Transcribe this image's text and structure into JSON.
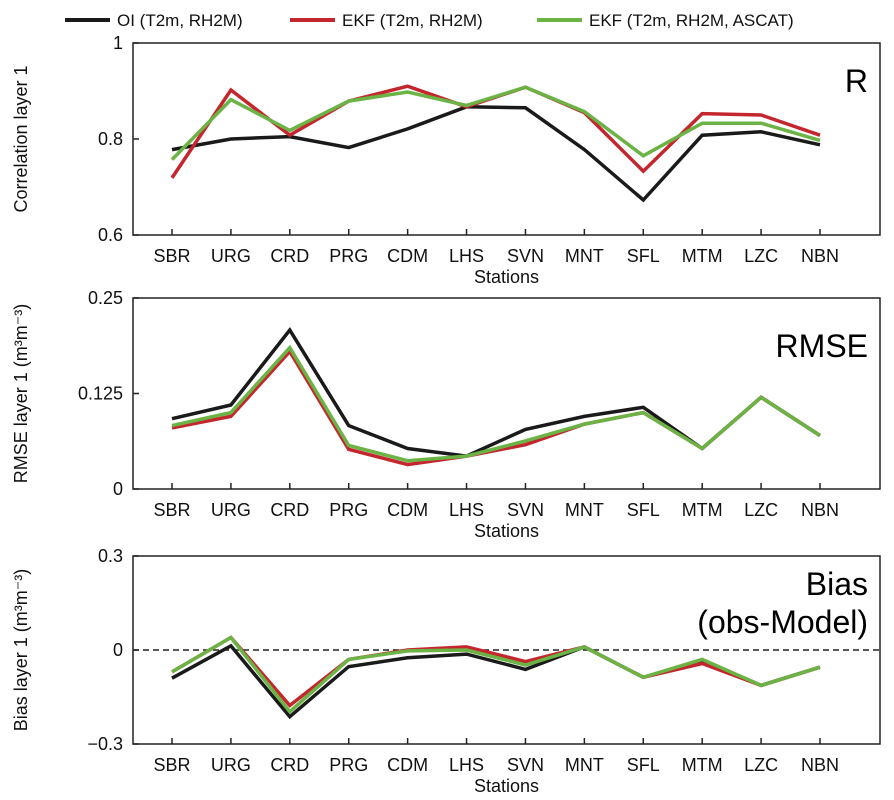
{
  "legend": [
    {
      "name": "OI (T2m, RH2M)",
      "color": "#1a1a1a"
    },
    {
      "name": "EKF (T2m, RH2M)",
      "color": "#c4262e"
    },
    {
      "name": "EKF (T2m, RH2M, ASCAT)",
      "color": "#6ab344"
    }
  ],
  "chart_data": [
    {
      "type": "line",
      "panel_label": "R",
      "xlabel": "Stations",
      "ylabel": "Correlation layer 1",
      "categories": [
        "SBR",
        "URG",
        "CRD",
        "PRG",
        "CDM",
        "LHS",
        "SVN",
        "MNT",
        "SFL",
        "MTM",
        "LZC",
        "NBN"
      ],
      "ylim": [
        0.6,
        1.0
      ],
      "yticks": [
        0.6,
        0.8,
        1.0
      ],
      "ytick_labels": [
        "0.6",
        "0.8",
        "1"
      ],
      "series": [
        {
          "name": "OI (T2m, RH2M)",
          "values": [
            0.778,
            0.8,
            0.805,
            0.782,
            0.821,
            0.867,
            0.865,
            0.778,
            0.673,
            0.808,
            0.815,
            0.788
          ]
        },
        {
          "name": "EKF (T2m, RH2M)",
          "values": [
            0.719,
            0.902,
            0.808,
            0.879,
            0.91,
            0.867,
            0.908,
            0.855,
            0.733,
            0.853,
            0.85,
            0.808
          ]
        },
        {
          "name": "EKF (T2m, RH2M, ASCAT)",
          "values": [
            0.757,
            0.882,
            0.818,
            0.879,
            0.898,
            0.87,
            0.908,
            0.857,
            0.765,
            0.833,
            0.833,
            0.797
          ]
        }
      ]
    },
    {
      "type": "line",
      "panel_label": "RMSE",
      "xlabel": "Stations",
      "ylabel": "RMSE layer 1 (m³m⁻³)",
      "categories": [
        "SBR",
        "URG",
        "CRD",
        "PRG",
        "CDM",
        "LHS",
        "SVN",
        "MNT",
        "SFL",
        "MTM",
        "LZC",
        "NBN"
      ],
      "ylim": [
        0,
        0.25
      ],
      "yticks": [
        0,
        0.125,
        0.25
      ],
      "ytick_labels": [
        "0",
        "0.125",
        "0.25"
      ],
      "series": [
        {
          "name": "OI (T2m, RH2M)",
          "values": [
            0.092,
            0.11,
            0.208,
            0.083,
            0.053,
            0.043,
            0.078,
            0.095,
            0.107,
            0.053,
            0.12,
            0.07
          ]
        },
        {
          "name": "EKF (T2m, RH2M)",
          "values": [
            0.08,
            0.095,
            0.18,
            0.052,
            0.032,
            0.043,
            0.058,
            0.085,
            0.1,
            0.053,
            0.12,
            0.07
          ]
        },
        {
          "name": "EKF (T2m, RH2M, ASCAT)",
          "values": [
            0.083,
            0.1,
            0.185,
            0.057,
            0.037,
            0.043,
            0.063,
            0.085,
            0.1,
            0.053,
            0.12,
            0.07
          ]
        }
      ]
    },
    {
      "type": "line",
      "panel_label": "Bias\n(obs-Model)",
      "panel_label_lines": [
        "Bias",
        "(obs-Model)"
      ],
      "xlabel": "Stations",
      "ylabel": "Bias layer 1 (m³m⁻³)",
      "categories": [
        "SBR",
        "URG",
        "CRD",
        "PRG",
        "CDM",
        "LHS",
        "SVN",
        "MNT",
        "SFL",
        "MTM",
        "LZC",
        "NBN"
      ],
      "ylim": [
        -0.3,
        0.3
      ],
      "yticks": [
        -0.3,
        0,
        0.3
      ],
      "ytick_labels": [
        "−0.3",
        "0",
        "0.3"
      ],
      "zero_line": {
        "style": "dashed",
        "value": 0
      },
      "series": [
        {
          "name": "OI (T2m, RH2M)",
          "values": [
            -0.09,
            0.013,
            -0.213,
            -0.053,
            -0.025,
            -0.013,
            -0.062,
            0.01,
            -0.087,
            -0.033,
            -0.113,
            -0.055
          ]
        },
        {
          "name": "EKF (T2m, RH2M)",
          "values": [
            -0.07,
            0.04,
            -0.177,
            -0.03,
            0.0,
            0.01,
            -0.037,
            0.01,
            -0.087,
            -0.043,
            -0.113,
            -0.055
          ]
        },
        {
          "name": "EKF (T2m, RH2M, ASCAT)",
          "values": [
            -0.07,
            0.04,
            -0.197,
            -0.03,
            -0.003,
            0.0,
            -0.048,
            0.01,
            -0.087,
            -0.03,
            -0.113,
            -0.055
          ]
        }
      ]
    }
  ]
}
